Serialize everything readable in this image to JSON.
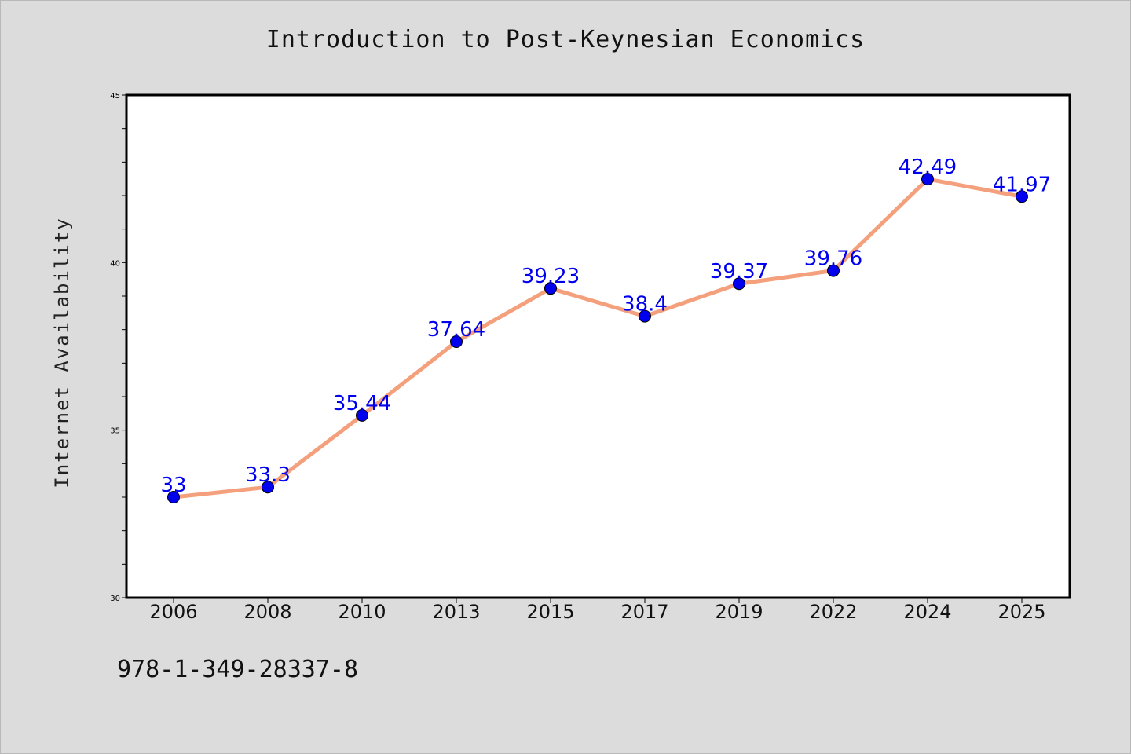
{
  "chart_data": {
    "type": "line",
    "title": "Introduction to Post-Keynesian Economics",
    "xlabel": "",
    "ylabel": "Internet Availability",
    "categories": [
      "2006",
      "2008",
      "2010",
      "2013",
      "2015",
      "2017",
      "2019",
      "2022",
      "2024",
      "2025"
    ],
    "series": [
      {
        "values": [
          33,
          33.3,
          35.44,
          37.64,
          39.23,
          38.4,
          39.37,
          39.76,
          42.49,
          41.97
        ],
        "labels": [
          "33",
          "33.3",
          "35.44",
          "37.64",
          "39.23",
          "38.4",
          "39.37",
          "39.76",
          "42.49",
          "41.97"
        ],
        "line_color": "#f4a07c",
        "marker_color": "#0000ee",
        "label_color": "#0000ee"
      }
    ],
    "ylim": [
      30,
      45
    ],
    "y_ticks": [
      "30",
      "35",
      "40",
      "45"
    ],
    "grid": false,
    "legend": "none",
    "background": "#dcdcdc",
    "plot_background": "#ffffff"
  },
  "footer": {
    "isbn": "978-1-349-28337-8"
  }
}
